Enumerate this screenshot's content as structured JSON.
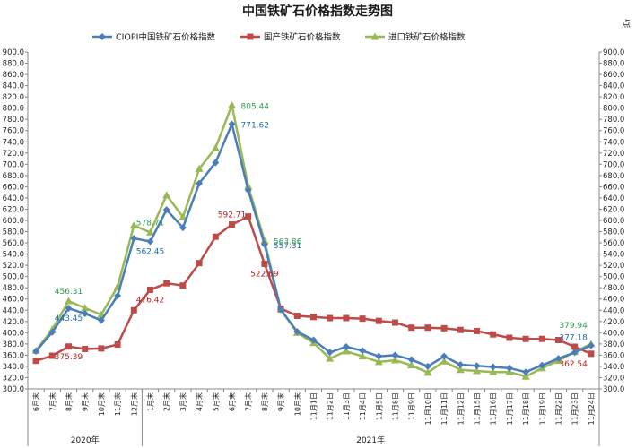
{
  "chart_data": {
    "type": "line",
    "title": "中国铁矿石价格指数走势图",
    "unit": "点",
    "ylim": [
      300,
      900
    ],
    "ytick_step": 20,
    "grid": false,
    "legend_position": "top",
    "categories": [
      "6月末",
      "7月末",
      "8月末",
      "9月末",
      "10月末",
      "11月末",
      "12月末",
      "1月末",
      "2月末",
      "3月末",
      "4月末",
      "5月末",
      "6月末",
      "7月末",
      "8月末",
      "9月末",
      "10月末",
      "11月1日",
      "11月2日",
      "11月3日",
      "11月4日",
      "11月5日",
      "11月8日",
      "11月9日",
      "11月10日",
      "11月11日",
      "11月12日",
      "11月15日",
      "11月16日",
      "11月17日",
      "11月18日",
      "11月19日",
      "11月22日",
      "11月23日",
      "11月24日"
    ],
    "year_groups": [
      {
        "label": "2020年",
        "start": 0,
        "end": 6
      },
      {
        "label": "2021年",
        "start": 7,
        "end": 34
      }
    ],
    "series": [
      {
        "name": "CIOPI中国铁矿石价格指数",
        "color": "#4a7ebb",
        "marker": "diamond",
        "values": [
          367,
          401,
          443.45,
          434,
          422,
          466,
          568,
          562.45,
          619,
          587,
          666,
          703,
          771.62,
          654,
          557.31,
          441,
          402,
          387,
          365,
          375,
          368,
          358,
          360,
          352,
          340,
          358,
          343,
          341,
          339,
          337,
          330,
          342,
          354,
          365,
          377.18
        ]
      },
      {
        "name": "国产铁矿石价格指数",
        "color": "#be4b48",
        "marker": "square",
        "values": [
          350,
          359,
          375.39,
          371,
          372,
          379,
          440,
          476.42,
          488,
          484,
          524,
          571,
          592.71,
          607,
          522.69,
          443,
          430,
          428,
          426,
          426,
          425,
          421,
          418,
          409,
          409,
          408,
          405,
          403,
          397,
          391,
          389,
          389,
          387,
          375,
          362.54
        ]
      },
      {
        "name": "进口铁矿石价格指数",
        "color": "#98b954",
        "marker": "triangle",
        "values": [
          368,
          406,
          456.31,
          444,
          432,
          482,
          591,
          578.71,
          645,
          606,
          692,
          729,
          805.44,
          661,
          563.86,
          441,
          400,
          382,
          354,
          367,
          358,
          348,
          351,
          342,
          329,
          349,
          334,
          332,
          330,
          330,
          322,
          337,
          350,
          366,
          379.94
        ]
      }
    ],
    "annotations": [
      {
        "series": 0,
        "index": 2,
        "text": "443.45",
        "color": "#1f6bb0",
        "pos": "below"
      },
      {
        "series": 0,
        "index": 7,
        "text": "562.45",
        "color": "#1f6bb0",
        "pos": "below"
      },
      {
        "series": 0,
        "index": 12,
        "text": "771.62",
        "color": "#1f6bb0",
        "pos": "right"
      },
      {
        "series": 0,
        "index": 14,
        "text": "557.31",
        "color": "#1f6bb0",
        "pos": "right"
      },
      {
        "series": 0,
        "index": 34,
        "text": "377.18",
        "color": "#1f6bb0",
        "pos": "above-left"
      },
      {
        "series": 1,
        "index": 2,
        "text": "375.39",
        "color": "#b22222",
        "pos": "below"
      },
      {
        "series": 1,
        "index": 7,
        "text": "476.42",
        "color": "#b22222",
        "pos": "below"
      },
      {
        "series": 1,
        "index": 12,
        "text": "592.71",
        "color": "#b22222",
        "pos": "above"
      },
      {
        "series": 1,
        "index": 14,
        "text": "522.69",
        "color": "#b22222",
        "pos": "below"
      },
      {
        "series": 1,
        "index": 34,
        "text": "362.54",
        "color": "#b22222",
        "pos": "below-left"
      },
      {
        "series": 2,
        "index": 2,
        "text": "456.31",
        "color": "#2e9e4f",
        "pos": "above"
      },
      {
        "series": 2,
        "index": 7,
        "text": "578.71",
        "color": "#2e9e4f",
        "pos": "above"
      },
      {
        "series": 2,
        "index": 12,
        "text": "805.44",
        "color": "#2e9e4f",
        "pos": "right"
      },
      {
        "series": 2,
        "index": 14,
        "text": "563.86",
        "color": "#2e9e4f",
        "pos": "right"
      },
      {
        "series": 2,
        "index": 34,
        "text": "379.94",
        "color": "#2e9e4f",
        "pos": "above-left"
      }
    ]
  }
}
